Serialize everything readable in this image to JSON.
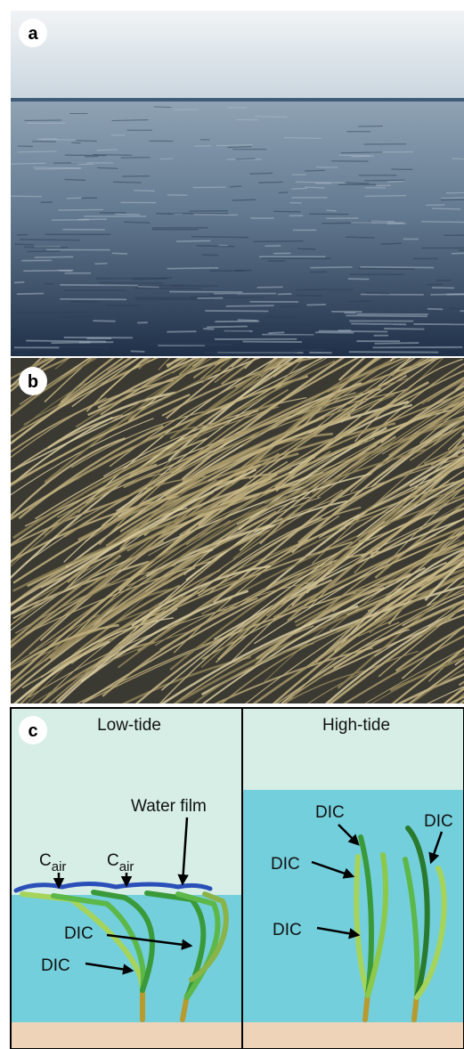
{
  "panel_a": {
    "label": "a"
  },
  "panel_b": {
    "label": "b"
  },
  "panel_c": {
    "label": "c",
    "low_tide": {
      "title": "Low-tide",
      "water_film": "Water film",
      "c_air": [
        {
          "base": "C",
          "sub": "air"
        },
        {
          "base": "C",
          "sub": "air"
        }
      ],
      "dic": [
        "DIC",
        "DIC"
      ]
    },
    "high_tide": {
      "title": "High-tide",
      "dic": [
        "DIC",
        "DIC",
        "DIC"
      ]
    }
  }
}
